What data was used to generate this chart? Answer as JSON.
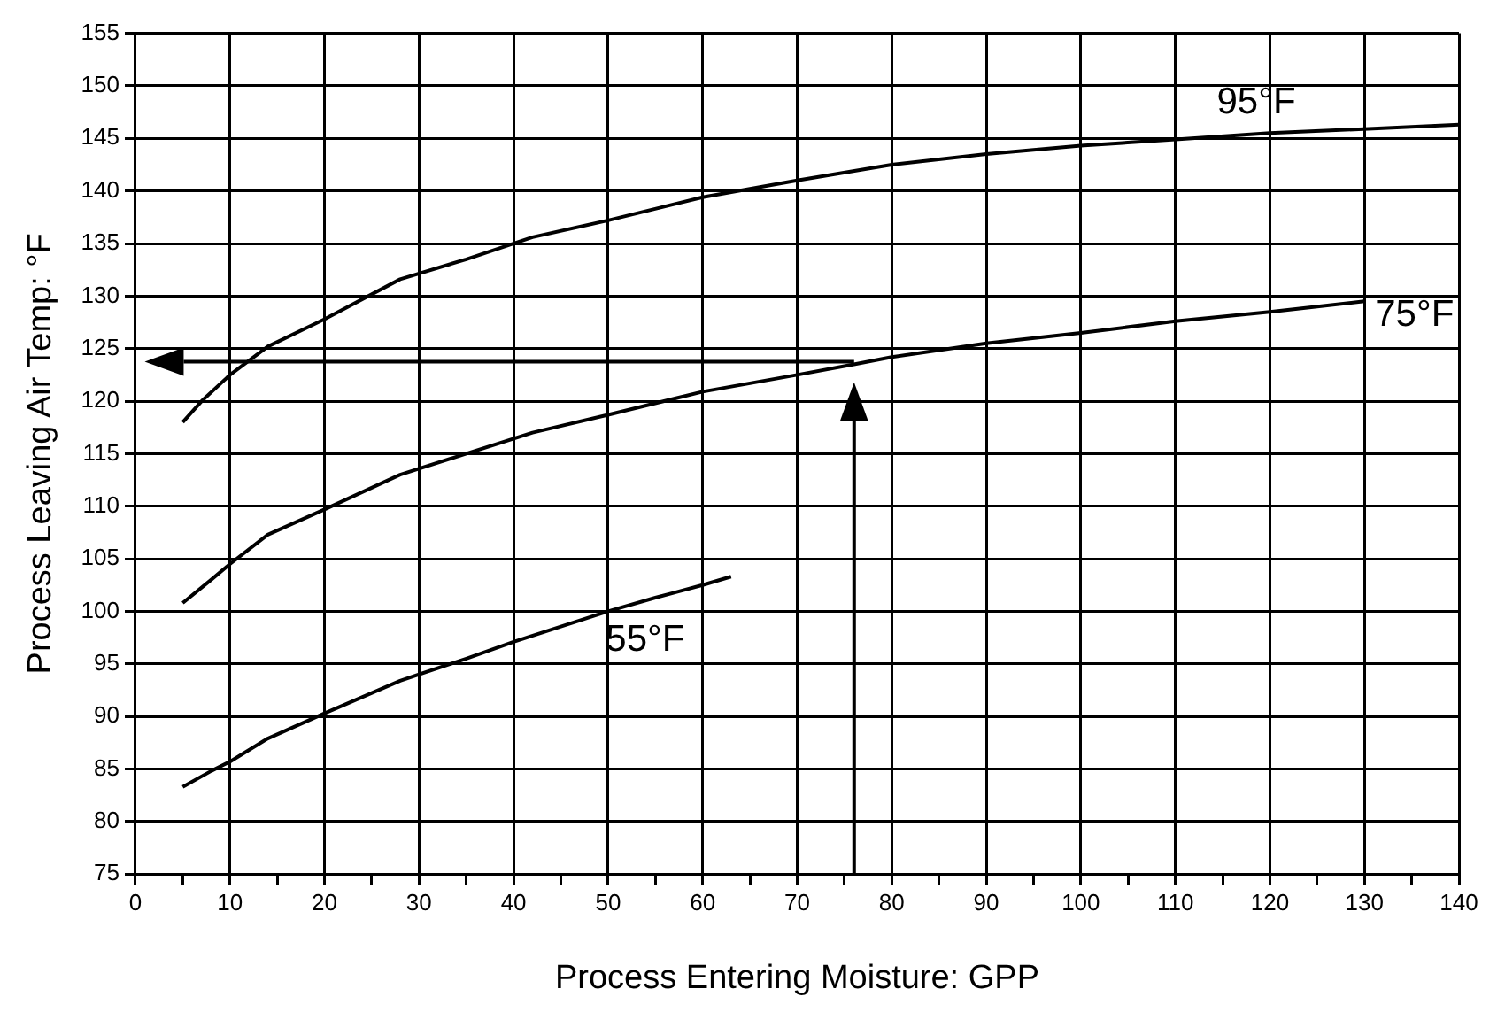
{
  "chart_data": {
    "type": "line",
    "xlabel": "Process Entering Moisture: GPP",
    "ylabel": "Process Leaving Air Temp: °F",
    "xlim": [
      0,
      140
    ],
    "xticks": [
      0,
      {
        "value": 5,
        "label": null
      },
      10,
      {
        "value": 15,
        "label": null
      },
      20,
      {
        "value": 25,
        "label": null
      },
      30,
      {
        "value": 35,
        "label": null
      },
      40,
      {
        "value": 45,
        "label": null
      },
      50,
      {
        "value": 55,
        "label": null
      },
      60,
      {
        "value": 65,
        "label": null
      },
      70,
      {
        "value": 75,
        "label": null
      },
      80,
      {
        "value": 85,
        "label": null
      },
      90,
      {
        "value": 95,
        "label": null
      },
      100,
      {
        "value": 105,
        "label": null
      },
      110,
      {
        "value": 115,
        "label": null
      },
      120,
      {
        "value": 125,
        "label": null
      },
      130,
      {
        "value": 135,
        "label": null
      },
      140
    ],
    "ylim": [
      75,
      155
    ],
    "yticks": [
      75,
      80,
      85,
      90,
      95,
      100,
      105,
      110,
      115,
      120,
      125,
      130,
      135,
      140,
      145,
      150,
      155
    ],
    "grid": true,
    "legend": false,
    "marker": "none",
    "line_style": "solid",
    "series": [
      {
        "name": "95°F",
        "color": "#000000",
        "x": [
          5,
          7,
          10,
          14,
          20,
          28,
          35,
          42,
          50,
          60,
          70,
          80,
          90,
          100,
          110,
          120,
          140
        ],
        "values": [
          118,
          120,
          122.5,
          125.2,
          127.8,
          131.6,
          133.5,
          135.6,
          137.2,
          139.4,
          141,
          142.5,
          143.5,
          144.3,
          144.9,
          145.5,
          146.3
        ]
      },
      {
        "name": "75°F",
        "color": "#000000",
        "x": [
          5,
          8,
          10,
          14,
          20,
          28,
          35,
          42,
          50,
          60,
          70,
          76,
          80,
          90,
          100,
          110,
          120,
          130
        ],
        "values": [
          100.8,
          103,
          104.5,
          107.3,
          109.7,
          113,
          115,
          117,
          118.7,
          120.9,
          122.5,
          123.5,
          124.2,
          125.5,
          126.5,
          127.6,
          128.5,
          129.5
        ]
      },
      {
        "name": "55°F",
        "color": "#000000",
        "x": [
          5,
          8,
          10,
          14,
          20,
          28,
          35,
          40,
          50,
          55,
          60,
          63
        ],
        "values": [
          83.3,
          84.8,
          85.7,
          87.9,
          90.3,
          93.4,
          95.5,
          97.1,
          100,
          101.3,
          102.5,
          103.3
        ]
      }
    ]
  }
}
